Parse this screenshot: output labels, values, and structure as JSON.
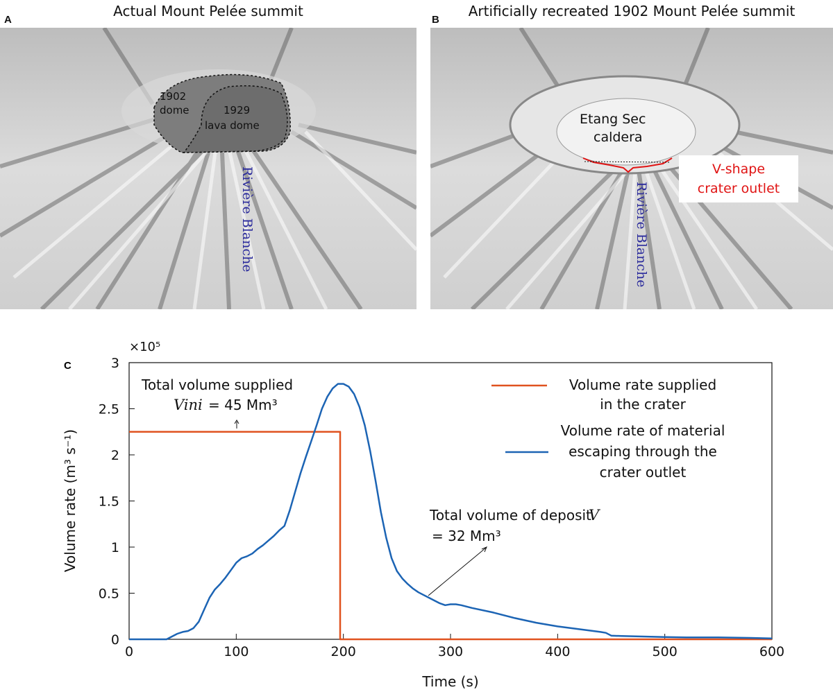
{
  "panel_a": {
    "letter": "A",
    "title": "Actual Mount Pelée summit",
    "labels": {
      "dome1902_l1": "1902",
      "dome1902_l2": "dome",
      "lava_l1": "1929",
      "lava_l2": "lava dome",
      "river": "Rivière Blanche"
    }
  },
  "panel_b": {
    "letter": "B",
    "title": "Artificially recreated 1902 Mount Pelée summit",
    "labels": {
      "caldera_l1": "Etang Sec",
      "caldera_l2": "caldera",
      "outlet_l1": "V-shape",
      "outlet_l2": "crater outlet",
      "river": "Rivière Blanche"
    },
    "colors": {
      "outlet": "#e01414",
      "river": "#2a2a9c"
    }
  },
  "panel_c": {
    "letter": "C"
  },
  "chart_data": {
    "type": "line",
    "xlabel": "Time (s)",
    "ylabel": "Volume rate (m³ s⁻¹)",
    "y_scale_note": "×10⁵",
    "xlim": [
      0,
      600
    ],
    "ylim": [
      0,
      3
    ],
    "xticks": [
      0,
      100,
      200,
      300,
      400,
      500,
      600
    ],
    "xtick_labels": [
      "0",
      "100",
      "200",
      "300",
      "400",
      "500",
      "600"
    ],
    "yticks": [
      0,
      0.5,
      1,
      1.5,
      2,
      2.5,
      3
    ],
    "ytick_labels": [
      "0",
      "0.5",
      "1",
      "1.5",
      "2",
      "2.5",
      "3"
    ],
    "series": [
      {
        "name": "Volume rate supplied in the crater",
        "legend_lines": [
          "Volume rate supplied",
          "in the crater"
        ],
        "color": "#e0521f",
        "x": [
          0,
          197,
          197,
          198,
          600
        ],
        "y": [
          2.25,
          2.25,
          0,
          0,
          0
        ]
      },
      {
        "name": "Volume rate of material escaping through the crater outlet",
        "legend_lines": [
          "Volume rate of material",
          "escaping through the",
          "crater outlet"
        ],
        "color": "#1c64b4",
        "x": [
          0,
          35,
          40,
          45,
          50,
          55,
          60,
          65,
          70,
          75,
          80,
          85,
          90,
          95,
          100,
          105,
          110,
          115,
          120,
          125,
          130,
          135,
          140,
          145,
          150,
          155,
          160,
          165,
          170,
          175,
          180,
          185,
          190,
          195,
          200,
          205,
          210,
          215,
          220,
          225,
          230,
          235,
          240,
          245,
          250,
          255,
          260,
          265,
          270,
          275,
          280,
          285,
          290,
          295,
          300,
          305,
          310,
          320,
          340,
          360,
          380,
          400,
          420,
          440,
          445,
          450,
          460,
          480,
          500,
          520,
          550,
          580,
          600
        ],
        "y": [
          0,
          0,
          0.03,
          0.06,
          0.08,
          0.09,
          0.12,
          0.19,
          0.32,
          0.45,
          0.54,
          0.6,
          0.67,
          0.75,
          0.83,
          0.88,
          0.9,
          0.93,
          0.98,
          1.02,
          1.07,
          1.12,
          1.18,
          1.23,
          1.4,
          1.6,
          1.8,
          1.98,
          2.15,
          2.32,
          2.5,
          2.63,
          2.72,
          2.77,
          2.77,
          2.74,
          2.66,
          2.52,
          2.32,
          2.04,
          1.72,
          1.38,
          1.1,
          0.88,
          0.74,
          0.66,
          0.6,
          0.55,
          0.51,
          0.48,
          0.45,
          0.42,
          0.39,
          0.37,
          0.38,
          0.38,
          0.37,
          0.34,
          0.29,
          0.23,
          0.18,
          0.14,
          0.11,
          0.08,
          0.07,
          0.04,
          0.035,
          0.03,
          0.025,
          0.02,
          0.02,
          0.015,
          0.01
        ]
      }
    ],
    "annotations": {
      "supplied_title": "Total volume supplied",
      "supplied_var": "Vini",
      "supplied_value": "= 45 Mm³",
      "deposit_title": "Total volume of deposit",
      "deposit_var": "V",
      "deposit_value": "= 32 Mm³"
    },
    "legend_position": "top-right",
    "grid": false
  }
}
